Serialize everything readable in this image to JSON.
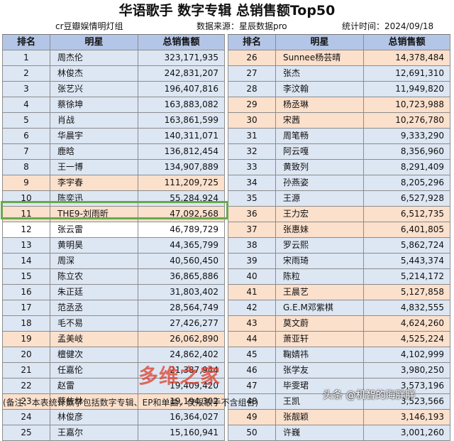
{
  "title": "华语歌手  数字专辑  总销售额Top50",
  "source_left": "cr豆瓣娱情明灯组",
  "source_mid": "数据来源：星辰数据pro",
  "source_right": "统计时间：2024/09/18",
  "headers": {
    "rank": "排名",
    "star": "明星",
    "sales": "总销售额"
  },
  "left_rows": [
    {
      "rank": "1",
      "name": "周杰伦",
      "sales": "323,171,935"
    },
    {
      "rank": "2",
      "name": "林俊杰",
      "sales": "242,831,207"
    },
    {
      "rank": "3",
      "name": "张艺兴",
      "sales": "196,407,816"
    },
    {
      "rank": "4",
      "name": "蔡徐坤",
      "sales": "163,883,082"
    },
    {
      "rank": "5",
      "name": "肖战",
      "sales": "163,861,599"
    },
    {
      "rank": "6",
      "name": "华晨宇",
      "sales": "140,311,071"
    },
    {
      "rank": "7",
      "name": "鹿晗",
      "sales": "136,812,454"
    },
    {
      "rank": "8",
      "name": "王一博",
      "sales": "134,907,889"
    },
    {
      "rank": "9",
      "name": "李宇春",
      "sales": "111,209,725"
    },
    {
      "rank": "10",
      "name": "陈奕迅",
      "sales": "55,284,924"
    },
    {
      "rank": "11",
      "name": "THE9-刘雨昕",
      "sales": "47,092,568"
    },
    {
      "rank": "12",
      "name": "张云雷",
      "sales": "46,789,729"
    },
    {
      "rank": "13",
      "name": "黄明昊",
      "sales": "44,365,799"
    },
    {
      "rank": "14",
      "name": "周深",
      "sales": "40,560,450"
    },
    {
      "rank": "15",
      "name": "陈立农",
      "sales": "36,865,886"
    },
    {
      "rank": "16",
      "name": "朱正廷",
      "sales": "31,803,402"
    },
    {
      "rank": "17",
      "name": "范丞丞",
      "sales": "28,564,749"
    },
    {
      "rank": "18",
      "name": "毛不易",
      "sales": "27,426,277"
    },
    {
      "rank": "19",
      "name": "孟美岐",
      "sales": "26,062,890"
    },
    {
      "rank": "20",
      "name": "檀健次",
      "sales": "24,862,402"
    },
    {
      "rank": "21",
      "name": "任嘉伦",
      "sales": "21,387,944"
    },
    {
      "rank": "22",
      "name": "赵雷",
      "sales": "19,409,420"
    },
    {
      "rank": "23",
      "name": "蔡依林",
      "sales": "19,194,302"
    },
    {
      "rank": "24",
      "name": "林俊彦",
      "sales": "16,364,027"
    },
    {
      "rank": "25",
      "name": "王嘉尔",
      "sales": "15,160,941"
    }
  ],
  "right_rows": [
    {
      "rank": "26",
      "name": "Sunnee杨芸晴",
      "sales": "14,378,484"
    },
    {
      "rank": "27",
      "name": "张杰",
      "sales": "12,691,310"
    },
    {
      "rank": "28",
      "name": "李汶翰",
      "sales": "11,949,820"
    },
    {
      "rank": "29",
      "name": "杨丞琳",
      "sales": "10,723,988"
    },
    {
      "rank": "30",
      "name": "宋茜",
      "sales": "10,276,780"
    },
    {
      "rank": "31",
      "name": "周笔畅",
      "sales": "9,333,290"
    },
    {
      "rank": "32",
      "name": "阿云嘎",
      "sales": "8,356,960"
    },
    {
      "rank": "33",
      "name": "黄致列",
      "sales": "8,291,409"
    },
    {
      "rank": "34",
      "name": "孙燕姿",
      "sales": "8,205,296"
    },
    {
      "rank": "35",
      "name": "王源",
      "sales": "6,527,928"
    },
    {
      "rank": "36",
      "name": "王力宏",
      "sales": "6,512,735"
    },
    {
      "rank": "37",
      "name": "张惠妹",
      "sales": "6,401,805"
    },
    {
      "rank": "38",
      "name": "罗云熙",
      "sales": "5,862,724"
    },
    {
      "rank": "39",
      "name": "宋雨琦",
      "sales": "5,443,374"
    },
    {
      "rank": "40",
      "name": "陈粒",
      "sales": "5,214,172"
    },
    {
      "rank": "41",
      "name": "王晨艺",
      "sales": "5,127,858"
    },
    {
      "rank": "42",
      "name": "G.E.M邓紫棋",
      "sales": "4,832,555"
    },
    {
      "rank": "43",
      "name": "莫文蔚",
      "sales": "4,624,260"
    },
    {
      "rank": "44",
      "name": "萧亚轩",
      "sales": "4,525,224"
    },
    {
      "rank": "45",
      "name": "鞠婧祎",
      "sales": "4,102,999"
    },
    {
      "rank": "46",
      "name": "张学友",
      "sales": "3,980,250"
    },
    {
      "rank": "47",
      "name": "毕雯珺",
      "sales": "3,573,196"
    },
    {
      "rank": "48",
      "name": "王凯",
      "sales": "3,523,566"
    },
    {
      "rank": "49",
      "name": "张靓颖",
      "sales": "3,146,193"
    },
    {
      "rank": "50",
      "name": "许巍",
      "sales": "3,001,260"
    }
  ],
  "left_colors": [
    "blue",
    "blue",
    "blue",
    "blue",
    "blue",
    "blue",
    "blue",
    "blue",
    "peach",
    "blue",
    "peach",
    "white",
    "blue",
    "blue",
    "blue",
    "blue",
    "blue",
    "blue",
    "peach",
    "blue",
    "blue",
    "blue",
    "peach",
    "blue",
    "blue"
  ],
  "right_colors": [
    "peach",
    "blue",
    "blue",
    "peach",
    "peach",
    "blue",
    "blue",
    "blue",
    "blue",
    "blue",
    "peach",
    "peach",
    "blue",
    "blue",
    "blue",
    "peach",
    "blue",
    "peach",
    "peach",
    "blue",
    "blue",
    "blue",
    "blue",
    "peach",
    "blue"
  ],
  "highlight_rank": "12",
  "footnote": "(备注：本表统计数字包括数字专辑、EP和单曲，仅限歌手不含组合)",
  "watermark_center": "多维之家",
  "watermark_corner": "头条 @机智的海胖胖",
  "colors": {
    "header": "#b4c6e7",
    "row_blue": "#dde6f3",
    "row_peach": "#fbe0cc",
    "highlight_border": "#6aa84f"
  }
}
